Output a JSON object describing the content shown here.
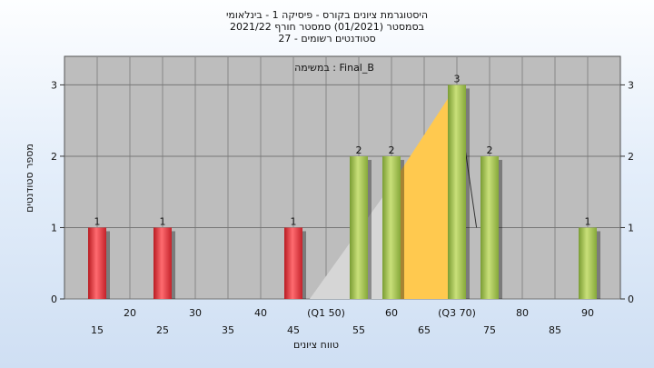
{
  "chart_data": {
    "type": "bar",
    "title_lines": [
      "היסטוגרמת ציונים בקורס - פיסיקה 1 - בינלאומי",
      "בסמסטר  (01/2021)  סמסטר חורף 2021/22",
      "סטודנטים רשומים - 27"
    ],
    "annotation": "במשימה : Final_B",
    "xlabel": "טווח ציונים",
    "ylabel": "מספר סטודנטים",
    "x_ticks_lower": [
      "15",
      "25",
      "35",
      "45",
      "55",
      "65",
      "75",
      "85"
    ],
    "x_ticks_upper": [
      "20",
      "30",
      "40",
      "(Q1 50)",
      "60",
      "(Q3 70)",
      "80",
      "90"
    ],
    "ylim": [
      0,
      3.4
    ],
    "yticks": [
      0,
      1,
      2,
      3
    ],
    "bars": [
      {
        "x": 15,
        "value": 1,
        "color": "red"
      },
      {
        "x": 25,
        "value": 1,
        "color": "red"
      },
      {
        "x": 45,
        "value": 1,
        "color": "red"
      },
      {
        "x": 55,
        "value": 2,
        "color": "green"
      },
      {
        "x": 60,
        "value": 2,
        "color": "green"
      },
      {
        "x": 70,
        "value": 3,
        "color": "green"
      },
      {
        "x": 75,
        "value": 2,
        "color": "green"
      },
      {
        "x": 90,
        "value": 1,
        "color": "green"
      }
    ],
    "colors": {
      "plot_background": "#bdbdbd",
      "red_bar": "#e8323a",
      "green_bar": "#9cc24a",
      "quartile_area": "#ffc94f"
    },
    "grid": true
  }
}
